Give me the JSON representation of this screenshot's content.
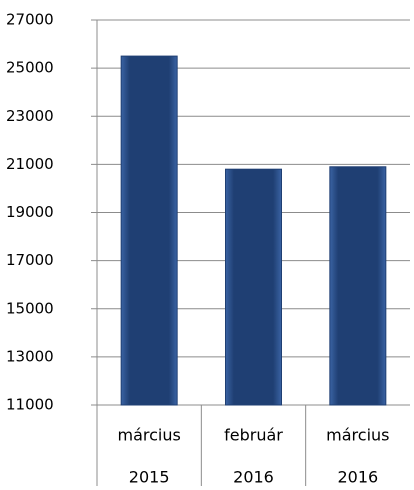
{
  "chart_data": {
    "type": "bar",
    "categories": [
      [
        "március",
        "2015"
      ],
      [
        "február",
        "2016"
      ],
      [
        "március",
        "2016"
      ]
    ],
    "values": [
      25500,
      20800,
      20900
    ],
    "color": "#1f3f73",
    "ylim": [
      11000,
      27000
    ],
    "yticks": [
      11000,
      13000,
      15000,
      17000,
      19000,
      21000,
      23000,
      25000,
      27000
    ],
    "grid": true
  }
}
